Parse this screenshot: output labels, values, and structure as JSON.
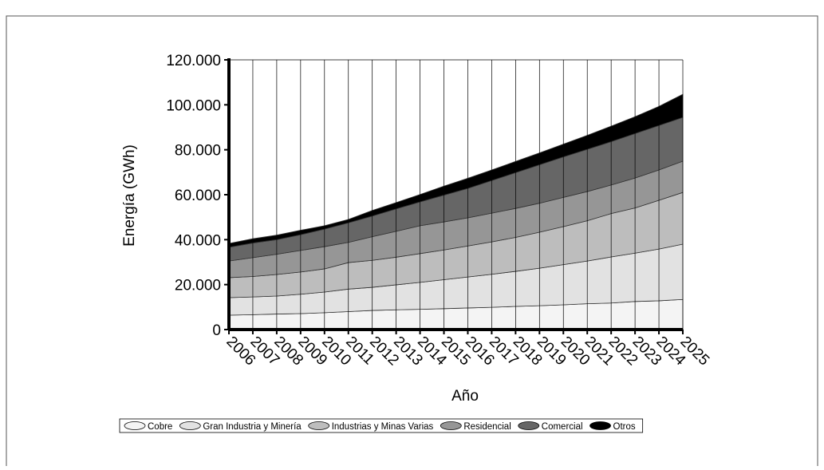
{
  "chart_data": {
    "type": "stacked_area",
    "y_label": "Energía (GWh)",
    "x_label": "Año",
    "categories": [
      "2006",
      "2007",
      "2008",
      "2009",
      "2010",
      "2011",
      "2012",
      "2013",
      "2014",
      "2015",
      "2016",
      "2017",
      "2018",
      "2019",
      "2020",
      "2021",
      "2022",
      "2023",
      "2024",
      "2025"
    ],
    "series": [
      {
        "name": "Cobre",
        "color": "#f4f4f4",
        "values": [
          6400,
          6600,
          6900,
          7100,
          7500,
          8000,
          8500,
          8800,
          9000,
          9300,
          9600,
          9900,
          10300,
          10600,
          11000,
          11500,
          11800,
          12500,
          12800,
          13400
        ]
      },
      {
        "name": "Gran Industria y Minería",
        "color": "#e2e2e2",
        "values": [
          7800,
          7900,
          8000,
          8600,
          9200,
          10000,
          10300,
          11100,
          12000,
          12900,
          13800,
          14700,
          15600,
          16700,
          17900,
          19000,
          20500,
          21500,
          23000,
          24600
        ]
      },
      {
        "name": "Industrias y Minas Varias",
        "color": "#bdbdbd",
        "values": [
          8900,
          9100,
          9600,
          9900,
          10300,
          11800,
          12000,
          12300,
          12800,
          13200,
          13800,
          14400,
          15100,
          16000,
          16900,
          17900,
          19300,
          20100,
          21700,
          23000
        ]
      },
      {
        "name": "Residencial",
        "color": "#969696",
        "values": [
          7400,
          8400,
          9000,
          9600,
          9900,
          9000,
          10500,
          11500,
          12400,
          12500,
          12500,
          12800,
          12900,
          12900,
          13000,
          13000,
          12700,
          13300,
          13500,
          13900
        ]
      },
      {
        "name": "Comercial",
        "color": "#666666",
        "values": [
          6100,
          6500,
          6500,
          7000,
          7800,
          8700,
          9200,
          10000,
          10600,
          11900,
          13100,
          14500,
          15900,
          17100,
          18000,
          18800,
          19300,
          19800,
          19800,
          19500
        ]
      },
      {
        "name": "Otros",
        "color": "#000000",
        "values": [
          1700,
          1900,
          2000,
          2000,
          1500,
          1500,
          2500,
          2800,
          3300,
          4000,
          4500,
          4700,
          5000,
          5300,
          5700,
          6200,
          6900,
          7500,
          8500,
          10300
        ]
      }
    ],
    "ylim": [
      0,
      120000
    ],
    "yticks": [
      0,
      {
        "value": 20000,
        "label": "20.000"
      },
      {
        "value": 40000,
        "label": "40.000"
      },
      {
        "value": 60000,
        "label": "60.000"
      },
      {
        "value": 80000,
        "label": "80.000"
      },
      {
        "value": 100000,
        "label": "100.000"
      },
      {
        "value": 120000,
        "label": "120.000"
      }
    ],
    "grid": "x",
    "legend": "bottom"
  }
}
